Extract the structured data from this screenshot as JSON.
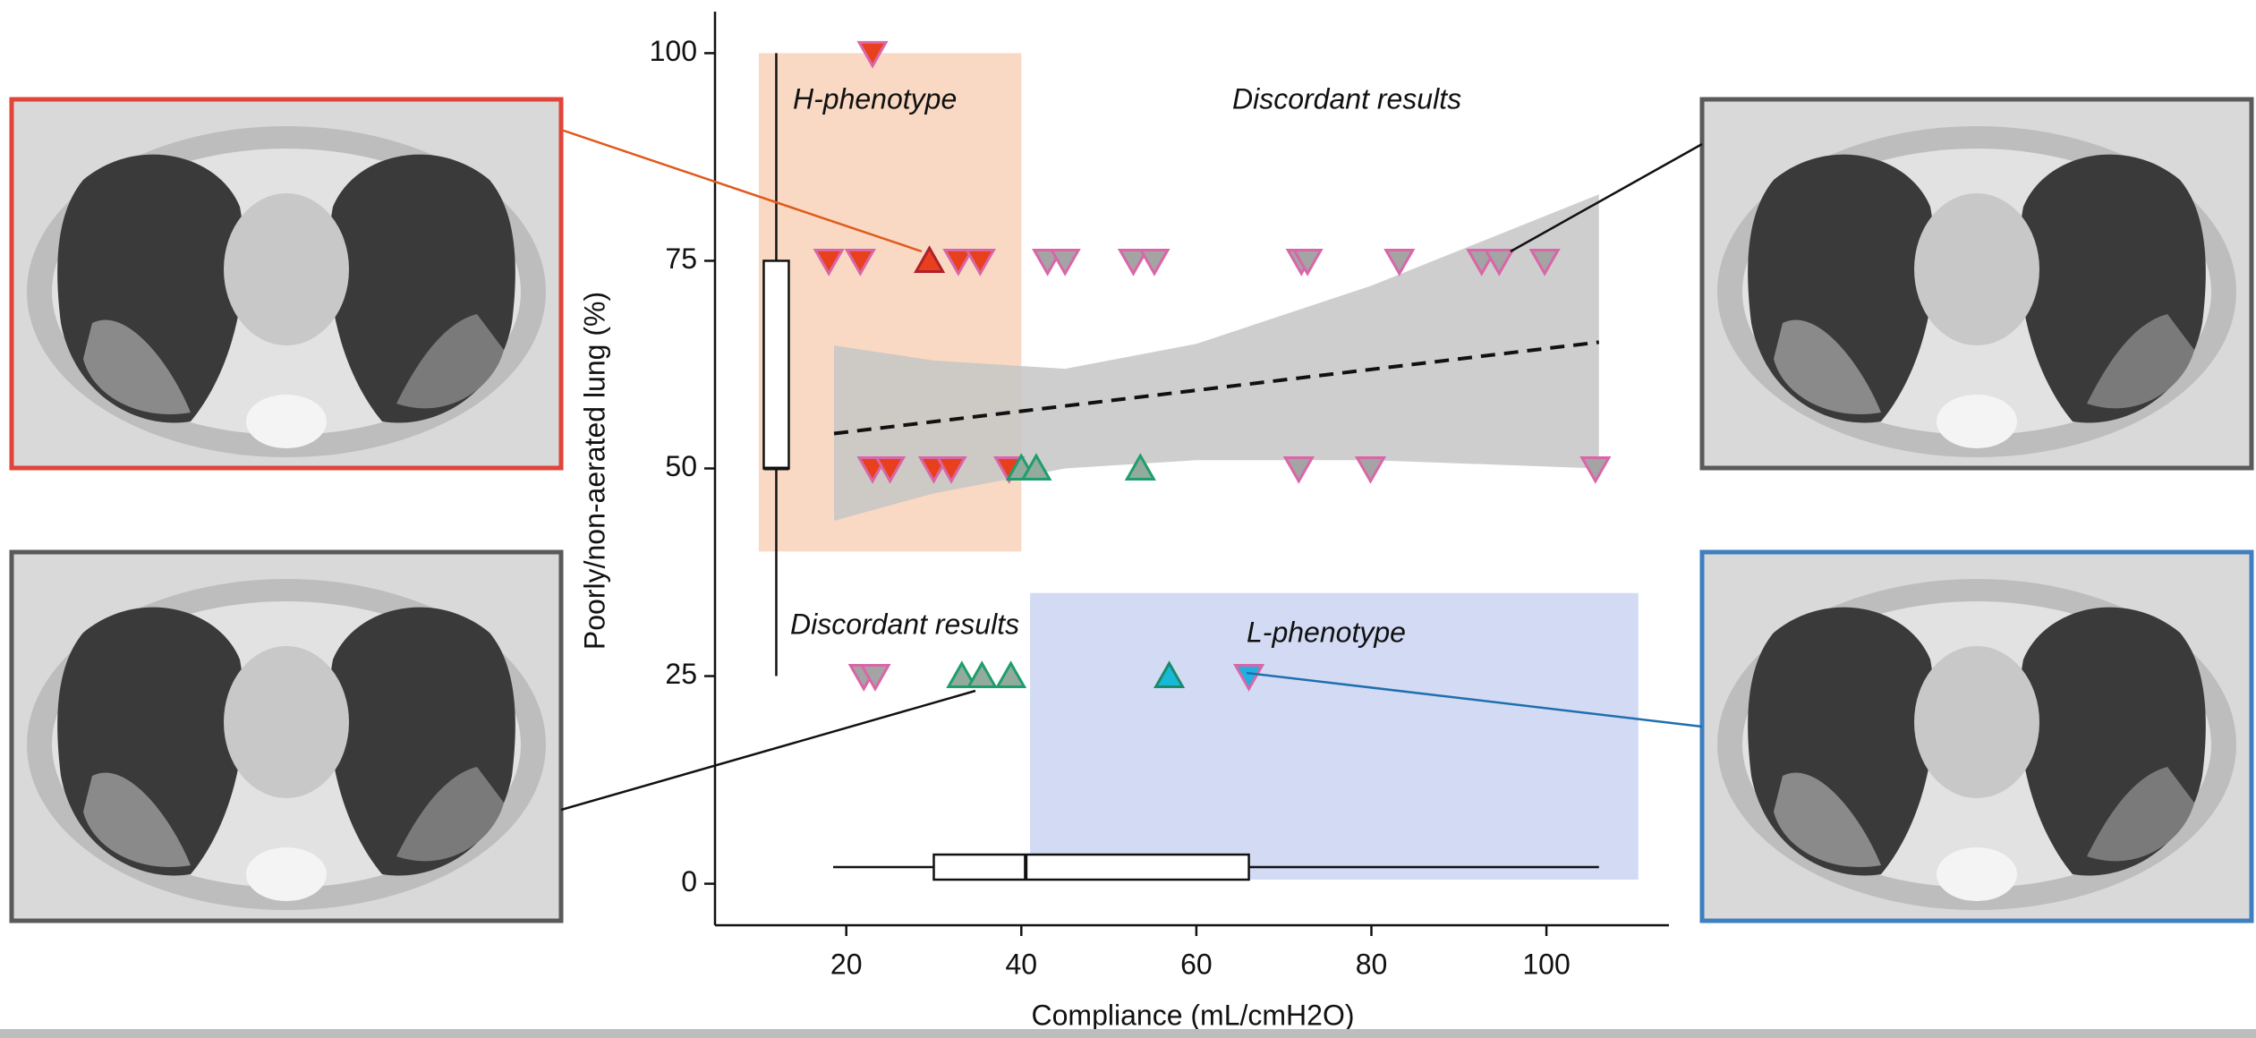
{
  "chart_data": {
    "type": "scatter",
    "xlabel": "Compliance (mL/cmH2O)",
    "ylabel": "Poorly/non-aerated lung (%)",
    "xlim": [
      5,
      114
    ],
    "ylim": [
      -5,
      105
    ],
    "xticks": [
      20,
      40,
      60,
      80,
      100
    ],
    "yticks": [
      0,
      25,
      50,
      75,
      100
    ],
    "regions": [
      {
        "label": "H-phenotype",
        "xlim": [
          10,
          40
        ],
        "ylim": [
          40,
          100
        ],
        "color": "#f9d9c4"
      },
      {
        "label": "L-phenotype",
        "xlim": [
          41,
          110.5
        ],
        "ylim": [
          0.5,
          35
        ],
        "color": "#d2dbf3"
      }
    ],
    "annotations": [
      "Discordant results",
      "Discordant results"
    ],
    "band": {
      "color": "#c6c6c6",
      "x": [
        18.6,
        30,
        45,
        60,
        80,
        106
      ],
      "upper": [
        64.8,
        63,
        62,
        65,
        72,
        83
      ],
      "lower": [
        43.7,
        47,
        50,
        51,
        51,
        50
      ]
    },
    "trend": {
      "x": [
        18.6,
        106
      ],
      "values": [
        54.2,
        65.2
      ]
    },
    "boxplot_y": {
      "min": 25,
      "q1": 50,
      "median": 50,
      "q3": 75,
      "max": 100
    },
    "boxplot_x": {
      "min": 18.5,
      "q1": 30,
      "median": 40.5,
      "q3": 66,
      "max": 106
    },
    "series": [
      {
        "marker": "down",
        "color": "#e8401c",
        "edge": "#d966a8",
        "x": [
          23,
          18,
          21.6,
          32.8,
          35.3,
          23,
          25,
          30,
          32,
          38.6
        ],
        "values": [
          100,
          75,
          75,
          75,
          75,
          50,
          50,
          50,
          50,
          50
        ]
      },
      {
        "marker": "up",
        "color": "#e8401c",
        "edge": "#b0202a",
        "x": [
          29.5
        ],
        "values": [
          75
        ]
      },
      {
        "marker": "down",
        "color": "#a4a4a4",
        "edge": "#d966a8",
        "x": [
          43,
          45,
          52.8,
          55.2,
          72,
          72.7,
          83.2,
          92.6,
          94.6,
          99.8,
          71.7,
          79.9,
          105.6,
          22,
          23.3
        ],
        "values": [
          75,
          75,
          75,
          75,
          75,
          75,
          75,
          75,
          75,
          75,
          50,
          50,
          50,
          25,
          25
        ]
      },
      {
        "marker": "up",
        "color": "#92ab9c",
        "edge": "#1e9e6e",
        "x": [
          40,
          41.7,
          53.6,
          33.2,
          35.5,
          38.8
        ],
        "values": [
          50,
          50,
          50,
          25,
          25,
          25
        ]
      },
      {
        "marker": "up",
        "color": "#18b8d8",
        "edge": "#1a8a6a",
        "x": [
          56.9
        ],
        "values": [
          25
        ]
      },
      {
        "marker": "down",
        "color": "#22b0e0",
        "edge": "#d966a8",
        "x": [
          66
        ],
        "values": [
          25
        ]
      }
    ]
  }
}
